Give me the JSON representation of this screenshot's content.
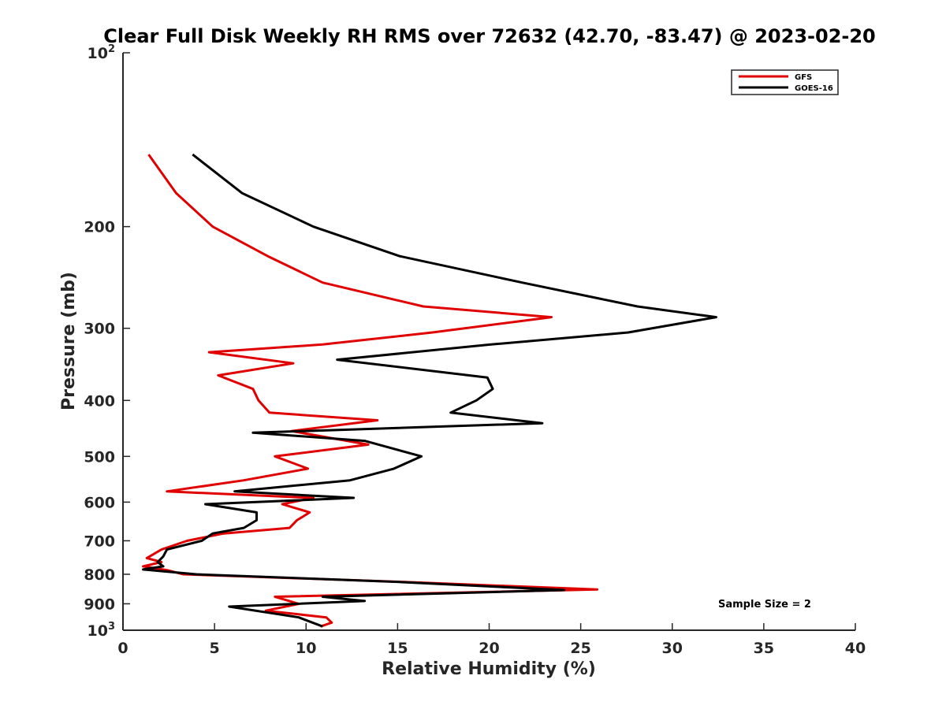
{
  "chart_data": {
    "type": "line",
    "title": "Clear Full Disk Weekly RH RMS over 72632 (42.70, -83.47) @ 2023-02-20",
    "xlabel": "Relative Humidity (%)",
    "ylabel": "Pressure (mb)",
    "xlim": [
      0,
      40
    ],
    "ylim": [
      100,
      1000
    ],
    "yscale": "log",
    "y_reversed": true,
    "grid": false,
    "legend_position": "top-right",
    "x_ticks": [
      "0",
      "5",
      "10",
      "15",
      "20",
      "25",
      "30",
      "35",
      "40"
    ],
    "y_ticks": [
      {
        "value": 100,
        "base": "10",
        "exp": "2"
      },
      {
        "value": 200,
        "label": "200"
      },
      {
        "value": 300,
        "label": "300"
      },
      {
        "value": 400,
        "label": "400"
      },
      {
        "value": 500,
        "label": "500"
      },
      {
        "value": 600,
        "label": "600"
      },
      {
        "value": 700,
        "label": "700"
      },
      {
        "value": 800,
        "label": "800"
      },
      {
        "value": 900,
        "label": "900"
      },
      {
        "value": 1000,
        "base": "10",
        "exp": "3"
      }
    ],
    "annotation": "Sample Size = 2",
    "series": [
      {
        "name": "GFS",
        "color": "#e00000",
        "points": [
          [
            1.4,
            150
          ],
          [
            2.9,
            175
          ],
          [
            4.9,
            200
          ],
          [
            7.9,
            225
          ],
          [
            10.9,
            250
          ],
          [
            16.4,
            275
          ],
          [
            23.4,
            287
          ],
          [
            16.9,
            305
          ],
          [
            10.9,
            320
          ],
          [
            4.7,
            330
          ],
          [
            9.3,
            345
          ],
          [
            5.2,
            362
          ],
          [
            7.1,
            382
          ],
          [
            7.4,
            400
          ],
          [
            8.0,
            420
          ],
          [
            13.9,
            433
          ],
          [
            9.2,
            452
          ],
          [
            13.4,
            477
          ],
          [
            8.3,
            500
          ],
          [
            10.1,
            525
          ],
          [
            6.6,
            550
          ],
          [
            2.4,
            575
          ],
          [
            10.4,
            590
          ],
          [
            8.7,
            605
          ],
          [
            10.2,
            625
          ],
          [
            9.5,
            645
          ],
          [
            9.1,
            665
          ],
          [
            5.5,
            680
          ],
          [
            3.5,
            700
          ],
          [
            2.1,
            725
          ],
          [
            1.3,
            750
          ],
          [
            2.1,
            762
          ],
          [
            1.1,
            775
          ],
          [
            2.4,
            787
          ],
          [
            3.3,
            800
          ],
          [
            15.4,
            825
          ],
          [
            25.9,
            850
          ],
          [
            8.3,
            875
          ],
          [
            9.6,
            900
          ],
          [
            7.8,
            925
          ],
          [
            11.1,
            950
          ],
          [
            11.4,
            970
          ],
          [
            10.8,
            985
          ]
        ]
      },
      {
        "name": "GOES-16",
        "color": "#000000",
        "points": [
          [
            3.8,
            150
          ],
          [
            6.5,
            175
          ],
          [
            10.4,
            200
          ],
          [
            15.1,
            225
          ],
          [
            21.8,
            250
          ],
          [
            28.1,
            275
          ],
          [
            32.4,
            287
          ],
          [
            27.6,
            305
          ],
          [
            20.1,
            320
          ],
          [
            11.7,
            340
          ],
          [
            19.9,
            365
          ],
          [
            20.2,
            382
          ],
          [
            19.3,
            400
          ],
          [
            17.9,
            420
          ],
          [
            22.9,
            438
          ],
          [
            7.1,
            455
          ],
          [
            13.2,
            470
          ],
          [
            16.3,
            500
          ],
          [
            14.8,
            525
          ],
          [
            12.4,
            550
          ],
          [
            6.1,
            575
          ],
          [
            12.6,
            590
          ],
          [
            4.5,
            605
          ],
          [
            7.3,
            625
          ],
          [
            7.3,
            645
          ],
          [
            6.6,
            665
          ],
          [
            4.9,
            680
          ],
          [
            4.3,
            700
          ],
          [
            2.4,
            725
          ],
          [
            2.2,
            745
          ],
          [
            1.9,
            762
          ],
          [
            2.2,
            775
          ],
          [
            1.1,
            785
          ],
          [
            4.0,
            800
          ],
          [
            15.1,
            825
          ],
          [
            24.1,
            852
          ],
          [
            10.9,
            875
          ],
          [
            13.2,
            890
          ],
          [
            5.8,
            910
          ],
          [
            9.6,
            950
          ],
          [
            10.9,
            985
          ]
        ]
      }
    ]
  }
}
